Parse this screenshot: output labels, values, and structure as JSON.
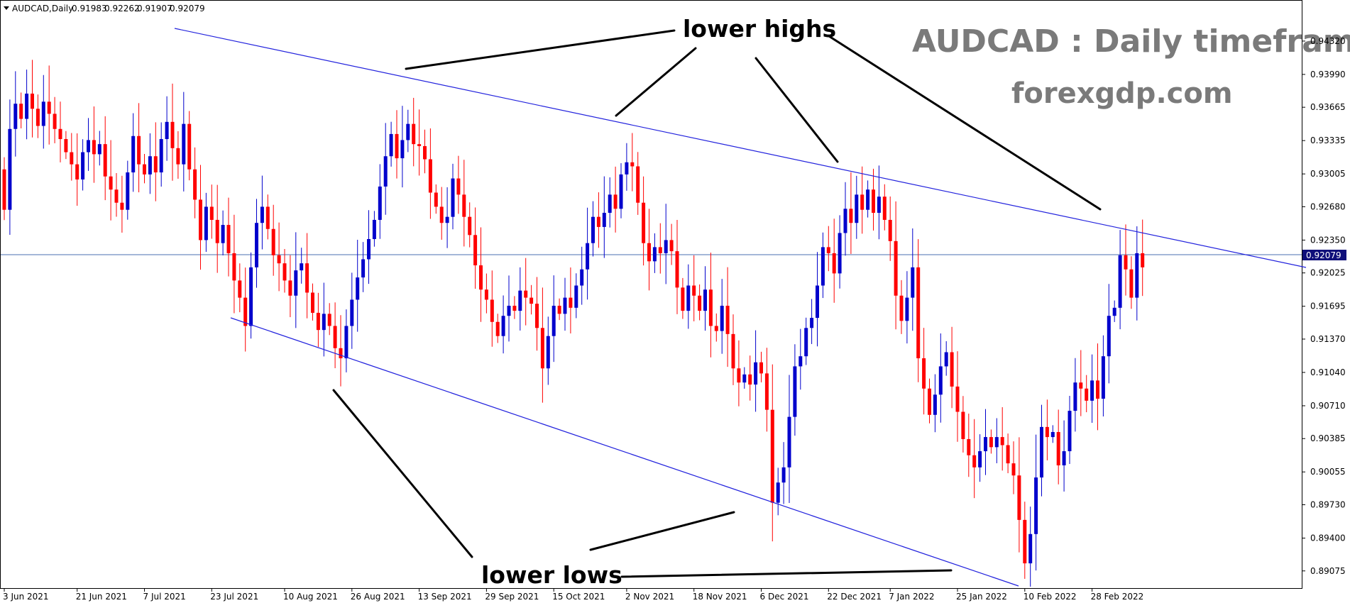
{
  "chart_data": {
    "type": "candlestick",
    "symbol_header": "AUDCAD,Daily",
    "ohlc_header": [
      "0.91983",
      "0.92262",
      "0.91907",
      "0.92079"
    ],
    "watermark_title": "AUDCAD : Daily timeframe",
    "watermark_site": "forexgdp.com",
    "current_price": 0.92079,
    "current_price_label": "0.92079",
    "ylim": [
      0.8894,
      0.9453
    ],
    "y_ticks": [
      "0.94320",
      "0.93990",
      "0.93665",
      "0.93335",
      "0.93005",
      "0.92680",
      "0.92350",
      "0.92025",
      "0.91695",
      "0.91370",
      "0.91040",
      "0.90710",
      "0.90385",
      "0.90055",
      "0.89730",
      "0.89400",
      "0.89075"
    ],
    "x_ticks": [
      {
        "label": "3 Jun 2021",
        "index": 0
      },
      {
        "label": "21 Jun 2021",
        "index": 13
      },
      {
        "label": "7 Jul 2021",
        "index": 25
      },
      {
        "label": "23 Jul 2021",
        "index": 37
      },
      {
        "label": "10 Aug 2021",
        "index": 50
      },
      {
        "label": "26 Aug 2021",
        "index": 62
      },
      {
        "label": "13 Sep 2021",
        "index": 74
      },
      {
        "label": "29 Sep 2021",
        "index": 86
      },
      {
        "label": "15 Oct 2021",
        "index": 98
      },
      {
        "label": "2 Nov 2021",
        "index": 111
      },
      {
        "label": "18 Nov 2021",
        "index": 123
      },
      {
        "label": "6 Dec 2021",
        "index": 135
      },
      {
        "label": "22 Dec 2021",
        "index": 147
      },
      {
        "label": "7 Jan 2022",
        "index": 158
      },
      {
        "label": "25 Jan 2022",
        "index": 170
      },
      {
        "label": "10 Feb 2022",
        "index": 182
      },
      {
        "label": "28 Feb 2022",
        "index": 194
      }
    ],
    "closes": [
      0.9265,
      0.9345,
      0.937,
      0.9355,
      0.938,
      0.9365,
      0.9348,
      0.9372,
      0.936,
      0.9345,
      0.9335,
      0.9322,
      0.931,
      0.9295,
      0.9322,
      0.9334,
      0.932,
      0.933,
      0.9298,
      0.9285,
      0.9272,
      0.9265,
      0.9302,
      0.9338,
      0.931,
      0.93,
      0.9318,
      0.9302,
      0.9335,
      0.9352,
      0.9326,
      0.931,
      0.935,
      0.9305,
      0.9275,
      0.9235,
      0.9268,
      0.9255,
      0.9232,
      0.925,
      0.9222,
      0.9195,
      0.9178,
      0.915,
      0.9208,
      0.9252,
      0.9268,
      0.9246,
      0.922,
      0.9212,
      0.9195,
      0.918,
      0.9205,
      0.9212,
      0.9183,
      0.9163,
      0.9146,
      0.9162,
      0.915,
      0.9128,
      0.9118,
      0.915,
      0.9176,
      0.9198,
      0.9216,
      0.9236,
      0.9255,
      0.9288,
      0.9318,
      0.934,
      0.9316,
      0.9334,
      0.935,
      0.933,
      0.9328,
      0.9315,
      0.9282,
      0.9268,
      0.9252,
      0.9258,
      0.9296,
      0.928,
      0.9258,
      0.924,
      0.921,
      0.9186,
      0.9176,
      0.9154,
      0.914,
      0.916,
      0.917,
      0.9165,
      0.9185,
      0.9178,
      0.9172,
      0.9148,
      0.9108,
      0.914,
      0.917,
      0.9162,
      0.9178,
      0.9168,
      0.919,
      0.9206,
      0.9232,
      0.9258,
      0.9248,
      0.9262,
      0.928,
      0.9266,
      0.93,
      0.9312,
      0.9308,
      0.9272,
      0.9232,
      0.9214,
      0.9228,
      0.9222,
      0.9235,
      0.9224,
      0.9188,
      0.9165,
      0.919,
      0.918,
      0.9165,
      0.9186,
      0.915,
      0.9145,
      0.917,
      0.9142,
      0.9108,
      0.9094,
      0.9102,
      0.9092,
      0.9114,
      0.9103,
      0.9067,
      0.8975,
      0.8995,
      0.901,
      0.906,
      0.911,
      0.912,
      0.9148,
      0.9158,
      0.919,
      0.9228,
      0.9222,
      0.9202,
      0.9242,
      0.9266,
      0.9252,
      0.928,
      0.9265,
      0.9285,
      0.9262,
      0.9278,
      0.9255,
      0.9234,
      0.918,
      0.9155,
      0.9178,
      0.9208,
      0.9118,
      0.9088,
      0.9062,
      0.9082,
      0.911,
      0.9124,
      0.909,
      0.9065,
      0.9038,
      0.9022,
      0.901,
      0.9026,
      0.904,
      0.903,
      0.904,
      0.9032,
      0.9014,
      0.9002,
      0.8958,
      0.8915,
      0.8944,
      0.9,
      0.905,
      0.904,
      0.9045,
      0.9012,
      0.9026,
      0.9066,
      0.9094,
      0.9088,
      0.9076,
      0.9096,
      0.9078,
      0.912,
      0.916,
      0.9168,
      0.922,
      0.9206,
      0.9178,
      0.9222,
      0.9208
    ]
  },
  "annotations": {
    "lower_highs": "lower highs",
    "lower_lows": "lower lows"
  },
  "colors": {
    "bull": "#0000cc",
    "bear": "#ff0000",
    "trendline": "#2222dd",
    "price_line": "#4a6fb0",
    "price_box": "#0f0f7a",
    "arrow": "#000000",
    "watermark": "#7a7a7a"
  }
}
